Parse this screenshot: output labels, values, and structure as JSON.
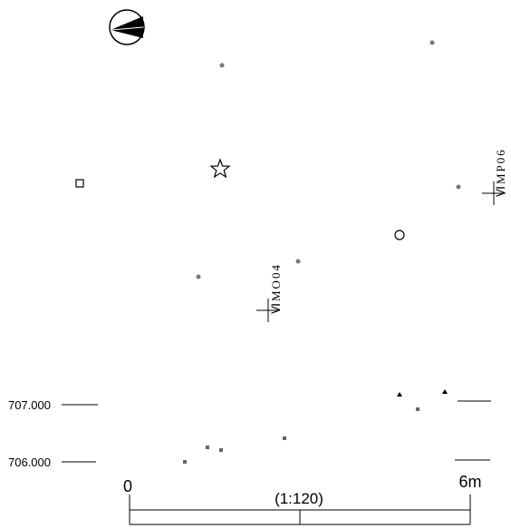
{
  "grid_points": [
    {
      "label": "ⅥMP06"
    },
    {
      "label": "ⅥMO04"
    }
  ],
  "elevations": [
    "707.000",
    "706.000"
  ],
  "scale_bar": {
    "start": "0",
    "end": "6m",
    "ratio": "(1:120)"
  }
}
